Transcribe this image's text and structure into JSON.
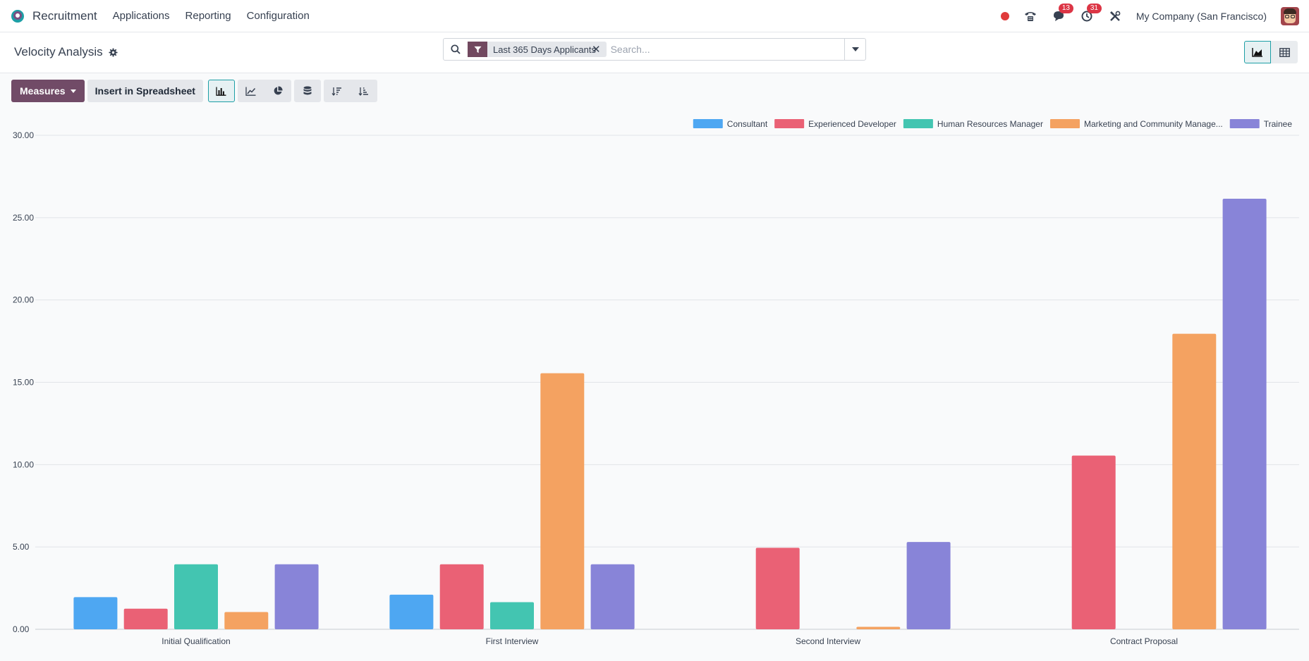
{
  "navbar": {
    "app_name": "Recruitment",
    "menu": [
      "Applications",
      "Reporting",
      "Configuration"
    ],
    "messages_count": "13",
    "activities_count": "31",
    "company": "My Company (San Francisco)"
  },
  "control": {
    "title": "Velocity Analysis",
    "facet_label": "Last 365 Days Applicants",
    "search_placeholder": "Search..."
  },
  "toolbar": {
    "measures_label": "Measures",
    "insert_label": "Insert in Spreadsheet"
  },
  "colors": {
    "accent": "#714b67",
    "teal": "#1d9fa6"
  },
  "chart_data": {
    "type": "bar",
    "categories": [
      "Initial Qualification",
      "First Interview",
      "Second Interview",
      "Contract Proposal"
    ],
    "series": [
      {
        "name": "Consultant",
        "color": "#4ea7f2",
        "values": [
          1.95,
          2.1,
          0,
          0
        ]
      },
      {
        "name": "Experienced Developer",
        "color": "#ea6175",
        "values": [
          1.25,
          3.95,
          4.95,
          10.55
        ]
      },
      {
        "name": "Human Resources Manager",
        "color": "#43c5b1",
        "values": [
          3.95,
          1.65,
          0,
          0
        ]
      },
      {
        "name": "Marketing and Community Manage...",
        "color": "#f4a261",
        "values": [
          1.05,
          15.55,
          0.15,
          17.95
        ]
      },
      {
        "name": "Trainee",
        "color": "#8884d8",
        "values": [
          3.95,
          3.95,
          5.3,
          26.15
        ]
      }
    ],
    "yticks": [
      "0.00",
      "5.00",
      "10.00",
      "15.00",
      "20.00",
      "25.00",
      "30.00"
    ],
    "ylim": [
      0,
      30
    ],
    "grid": true,
    "legend": "top-right"
  }
}
